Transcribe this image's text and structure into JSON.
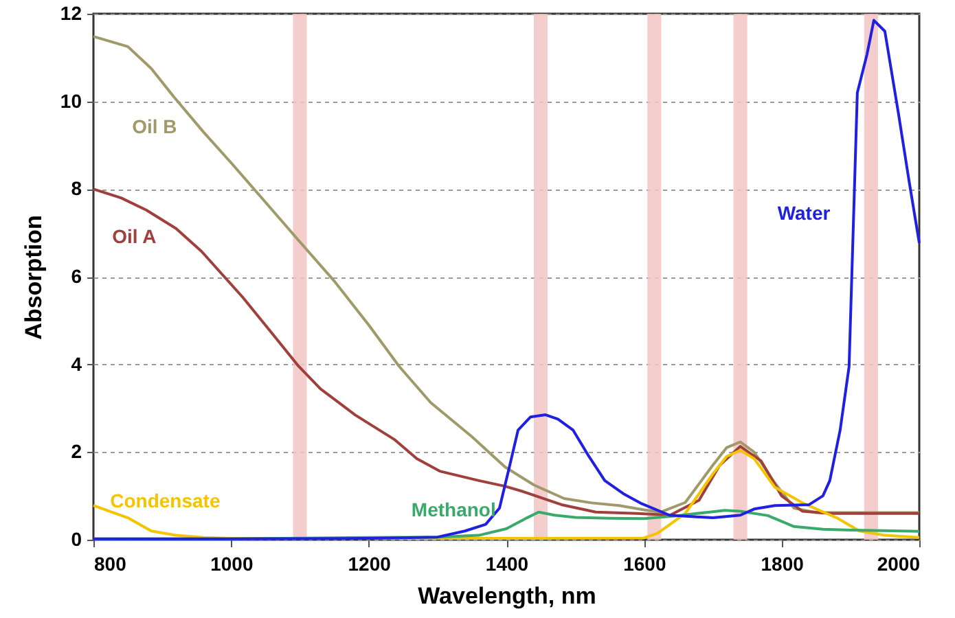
{
  "chart_data": {
    "type": "line",
    "xlabel": "Wavelength, nm",
    "ylabel": "Absorption",
    "xlim": [
      800,
      2000
    ],
    "xticks": [
      800,
      1000,
      1200,
      1400,
      1600,
      1800,
      2000
    ],
    "ylim": [
      0,
      12
    ],
    "yticks": [
      0,
      2,
      4,
      6,
      8,
      10,
      12
    ],
    "grid": "y",
    "marker": "none",
    "line_style": "solid",
    "bands": [
      {
        "axis": "x",
        "from": 1090,
        "to": 1110,
        "color": "#f2c4c4"
      },
      {
        "axis": "x",
        "from": 1440,
        "to": 1460,
        "color": "#f2c4c4"
      },
      {
        "axis": "x",
        "from": 1605,
        "to": 1625,
        "color": "#f2c4c4"
      },
      {
        "axis": "x",
        "from": 1730,
        "to": 1750,
        "color": "#f2c4c4"
      },
      {
        "axis": "x",
        "from": 1920,
        "to": 1940,
        "color": "#f2c4c4"
      }
    ],
    "series": [
      {
        "name": "Oil B",
        "color": "#a09a6a",
        "x": [
          800,
          850,
          884,
          917,
          960,
          1000,
          1050,
          1098,
          1150,
          1200,
          1244,
          1290,
          1350,
          1398,
          1440,
          1484,
          1524,
          1564,
          1600,
          1624,
          1660,
          1700,
          1720,
          1740,
          1760,
          1790,
          1818,
          1850,
          1900,
          2000
        ],
        "values": [
          11.48,
          11.25,
          10.75,
          10.1,
          9.3,
          8.6,
          7.7,
          6.83,
          5.9,
          4.9,
          3.96,
          3.13,
          2.35,
          1.66,
          1.25,
          0.94,
          0.84,
          0.78,
          0.68,
          0.63,
          0.85,
          1.7,
          2.1,
          2.23,
          2.0,
          1.3,
          0.72,
          0.62,
          0.62,
          0.62
        ]
      },
      {
        "name": "Oil A",
        "color": "#a0403c",
        "x": [
          800,
          840,
          877,
          920,
          957,
          1017,
          1060,
          1098,
          1130,
          1180,
          1237,
          1270,
          1304,
          1360,
          1398,
          1424,
          1480,
          1530,
          1590,
          1638,
          1680,
          1710,
          1740,
          1770,
          1800,
          1830,
          1870,
          2000
        ],
        "values": [
          8.0,
          7.8,
          7.52,
          7.1,
          6.58,
          5.53,
          4.7,
          3.96,
          3.44,
          2.85,
          2.29,
          1.85,
          1.56,
          1.35,
          1.22,
          1.1,
          0.8,
          0.63,
          0.6,
          0.56,
          0.9,
          1.7,
          2.13,
          1.8,
          1.0,
          0.65,
          0.6,
          0.6
        ]
      },
      {
        "name": "Condensate",
        "color": "#f5c400",
        "x": [
          800,
          850,
          884,
          920,
          960,
          1000,
          1400,
          1600,
          1620,
          1660,
          1700,
          1720,
          1740,
          1760,
          1790,
          1833,
          1880,
          1913,
          1950,
          2000
        ],
        "values": [
          0.78,
          0.5,
          0.2,
          0.1,
          0.05,
          0.03,
          0.03,
          0.04,
          0.15,
          0.6,
          1.5,
          1.9,
          2.04,
          1.85,
          1.2,
          0.82,
          0.5,
          0.2,
          0.1,
          0.05
        ]
      },
      {
        "name": "Methanol",
        "color": "#3aaa6a",
        "x": [
          800,
          1000,
          1200,
          1300,
          1360,
          1400,
          1430,
          1447,
          1470,
          1500,
          1550,
          1600,
          1650,
          1700,
          1717,
          1740,
          1780,
          1818,
          1860,
          1900,
          2000
        ],
        "values": [
          0.02,
          0.02,
          0.05,
          0.06,
          0.1,
          0.25,
          0.5,
          0.63,
          0.56,
          0.51,
          0.49,
          0.48,
          0.55,
          0.64,
          0.67,
          0.65,
          0.55,
          0.3,
          0.24,
          0.22,
          0.19
        ]
      },
      {
        "name": "Water",
        "color": "#2020e0",
        "x": [
          800,
          1000,
          1200,
          1300,
          1340,
          1370,
          1390,
          1405,
          1417,
          1435,
          1457,
          1475,
          1497,
          1520,
          1543,
          1570,
          1597,
          1637,
          1700,
          1740,
          1760,
          1790,
          1840,
          1860,
          1870,
          1885,
          1898,
          1910,
          1924,
          1934,
          1950,
          1970,
          1985,
          2000
        ],
        "values": [
          0.02,
          0.02,
          0.03,
          0.06,
          0.2,
          0.35,
          0.72,
          1.7,
          2.5,
          2.8,
          2.85,
          2.75,
          2.5,
          1.9,
          1.35,
          1.05,
          0.82,
          0.56,
          0.5,
          0.56,
          0.7,
          0.78,
          0.8,
          1.0,
          1.35,
          2.5,
          3.95,
          10.2,
          11.07,
          11.85,
          11.6,
          9.7,
          8.2,
          6.77
        ]
      }
    ]
  }
}
